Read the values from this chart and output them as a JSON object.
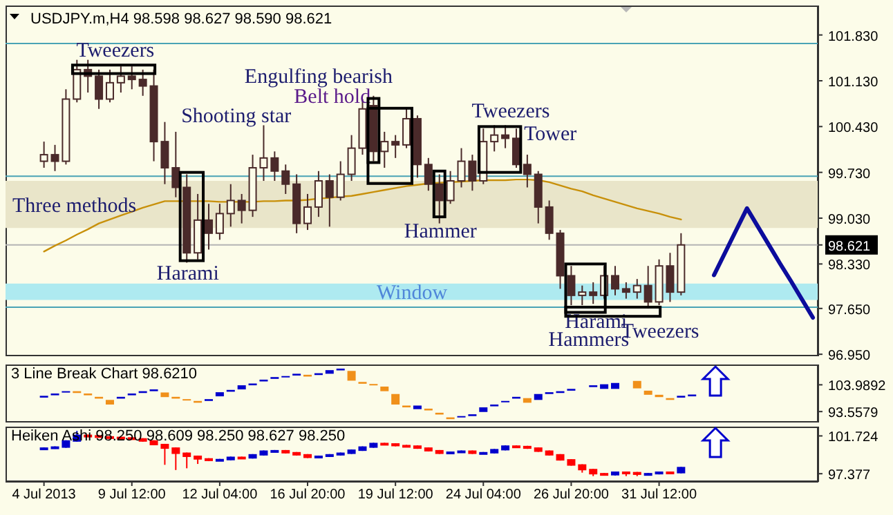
{
  "chart_data": [
    {
      "type": "candlestick",
      "title": "USDJPY.m,H4 98.598 98.627 98.590 98.621",
      "ylim": [
        96.92,
        102.28
      ],
      "tick_labels": "y",
      "categories": [
        null,
        null,
        null,
        null,
        null,
        null,
        null,
        null,
        null,
        null,
        null,
        null,
        null,
        null,
        null,
        null,
        null,
        null,
        null,
        null,
        null,
        null,
        null,
        null,
        null,
        null,
        null,
        null,
        null,
        null,
        null,
        null,
        null,
        null,
        null,
        null,
        null,
        null,
        null,
        null,
        null,
        null,
        null,
        null,
        null,
        null,
        null,
        null,
        null,
        null,
        null,
        null,
        null,
        null,
        null,
        null,
        null,
        null,
        null,
        null,
        null,
        null,
        null,
        null,
        null,
        null,
        null,
        null,
        null,
        null,
        null,
        null,
        null,
        null
      ],
      "yticks": [
        {
          "value": 101.83,
          "label": "101.830"
        },
        {
          "value": 101.13,
          "label": "101.130"
        },
        {
          "value": 100.43,
          "label": "100.430"
        },
        {
          "value": 99.73,
          "label": "99.730"
        },
        {
          "value": 99.03,
          "label": "99.030"
        },
        {
          "value": 98.621,
          "label": "98.621"
        },
        {
          "value": 98.33,
          "label": "98.330"
        },
        {
          "value": 97.65,
          "label": "97.650"
        },
        {
          "value": 96.95,
          "label": "96.950"
        }
      ],
      "series": [
        {
          "color": "#4a2a2a",
          "ohlc": [
            null,
            null,
            null,
            [
              99.9,
              100.2,
              99.8,
              100.0
            ],
            [
              100.0,
              100.15,
              99.75,
              99.9
            ],
            [
              99.9,
              101.0,
              99.85,
              100.85
            ],
            [
              100.85,
              101.45,
              100.8,
              101.3
            ],
            [
              101.3,
              101.45,
              100.95,
              101.2
            ],
            [
              101.2,
              101.3,
              100.7,
              100.85
            ],
            [
              100.85,
              101.3,
              100.8,
              101.1
            ],
            [
              101.1,
              101.35,
              100.95,
              101.2
            ],
            [
              101.2,
              101.35,
              101.0,
              101.15
            ],
            [
              101.15,
              101.3,
              100.9,
              101.05
            ],
            [
              101.05,
              101.3,
              99.9,
              100.2
            ],
            [
              100.2,
              100.5,
              99.55,
              99.8
            ],
            [
              99.8,
              100.35,
              99.35,
              99.5
            ],
            [
              99.5,
              99.7,
              98.35,
              98.5
            ],
            [
              98.5,
              99.4,
              98.4,
              99.0
            ],
            [
              99.0,
              99.25,
              98.55,
              98.8
            ],
            [
              98.8,
              99.25,
              98.7,
              99.1
            ],
            [
              99.1,
              99.55,
              98.9,
              99.3
            ],
            [
              99.3,
              99.4,
              98.95,
              99.15
            ],
            [
              99.15,
              100.0,
              99.05,
              99.8
            ],
            [
              99.8,
              100.45,
              99.6,
              99.95
            ],
            [
              99.95,
              100.05,
              99.6,
              99.75
            ],
            [
              99.75,
              99.85,
              99.4,
              99.55
            ],
            [
              99.55,
              99.7,
              98.8,
              98.95
            ],
            [
              98.95,
              99.4,
              98.85,
              99.2
            ],
            [
              99.2,
              99.75,
              99.05,
              99.6
            ],
            [
              99.6,
              99.7,
              98.9,
              99.35
            ],
            [
              99.35,
              99.9,
              99.3,
              99.7
            ],
            [
              99.7,
              100.3,
              99.6,
              100.1
            ],
            [
              100.1,
              100.85,
              100.0,
              100.7
            ],
            [
              100.75,
              100.9,
              99.9,
              100.05
            ],
            [
              100.05,
              100.35,
              99.8,
              100.2
            ],
            [
              100.2,
              100.3,
              99.95,
              100.15
            ],
            [
              100.15,
              100.7,
              100.1,
              100.55
            ],
            [
              100.55,
              100.6,
              99.65,
              99.85
            ],
            [
              99.85,
              99.95,
              99.45,
              99.55
            ],
            [
              99.55,
              99.7,
              98.95,
              99.3
            ],
            [
              99.3,
              99.75,
              99.25,
              99.6
            ],
            [
              99.6,
              100.1,
              99.5,
              99.9
            ],
            [
              99.9,
              100.0,
              99.45,
              99.6
            ],
            [
              99.6,
              100.4,
              99.55,
              100.2
            ],
            [
              100.2,
              100.45,
              100.05,
              100.3
            ],
            [
              100.3,
              100.45,
              100.1,
              100.25
            ],
            [
              100.25,
              100.4,
              99.8,
              99.85
            ],
            [
              99.85,
              100.0,
              99.5,
              99.7
            ],
            [
              99.7,
              99.75,
              98.95,
              99.2
            ],
            [
              99.2,
              99.3,
              98.7,
              98.8
            ],
            [
              98.8,
              98.85,
              97.95,
              98.15
            ],
            [
              98.15,
              98.3,
              97.7,
              97.85
            ],
            [
              97.85,
              98.0,
              97.7,
              97.9
            ],
            [
              97.9,
              98.05,
              97.72,
              97.85
            ],
            [
              97.85,
              98.3,
              97.8,
              98.15
            ],
            [
              98.15,
              98.3,
              97.85,
              97.95
            ],
            [
              97.95,
              98.05,
              97.8,
              97.9
            ],
            [
              97.9,
              98.1,
              97.8,
              98.0
            ],
            [
              98.0,
              98.3,
              97.65,
              97.75
            ],
            [
              97.75,
              98.4,
              97.7,
              98.3
            ],
            [
              98.3,
              98.5,
              97.75,
              97.9
            ],
            [
              97.9,
              98.8,
              97.85,
              98.621
            ],
            null,
            null,
            null,
            null,
            null,
            null,
            null,
            null,
            null,
            null,
            null,
            null
          ]
        },
        {
          "type": "line",
          "color": "#c8900a",
          "values": [
            null,
            null,
            null,
            98.52,
            98.61,
            98.69,
            98.78,
            98.86,
            98.95,
            99.01,
            99.07,
            99.13,
            99.19,
            99.24,
            99.29,
            99.29,
            99.29,
            99.29,
            99.29,
            99.28,
            99.28,
            99.28,
            99.28,
            99.29,
            99.29,
            99.3,
            99.3,
            99.31,
            99.33,
            99.34,
            99.36,
            99.37,
            99.4,
            99.43,
            99.46,
            99.49,
            99.52,
            99.54,
            99.56,
            99.57,
            99.58,
            99.59,
            99.6,
            99.61,
            99.61,
            99.61,
            99.62,
            99.62,
            99.61,
            99.58,
            99.53,
            99.48,
            99.44,
            99.38,
            99.33,
            99.28,
            99.23,
            99.18,
            99.14,
            99.1,
            99.05,
            99.01,
            null,
            null,
            null,
            null,
            null,
            null,
            null,
            null,
            null,
            null,
            null,
            null
          ]
        },
        {
          "type": "line",
          "color": "#0c0c9c",
          "values": [
            null,
            null,
            null,
            null,
            null,
            null,
            null,
            null,
            null,
            null,
            null,
            null,
            null,
            null,
            null,
            null,
            null,
            null,
            null,
            null,
            null,
            null,
            null,
            null,
            null,
            null,
            null,
            null,
            null,
            null,
            null,
            null,
            null,
            null,
            null,
            null,
            null,
            null,
            null,
            null,
            null,
            null,
            null,
            null,
            null,
            null,
            null,
            null,
            null,
            null,
            null,
            null,
            null,
            null,
            null,
            null,
            null,
            null,
            null,
            null,
            null,
            null,
            null,
            null,
            98.16,
            98.5,
            98.84,
            99.18,
            98.9,
            98.62,
            98.34,
            98.07,
            97.79,
            97.51
          ]
        }
      ],
      "ref_lines": [
        {
          "axis": "y",
          "value": 101.7,
          "color": "#4aa3b5"
        },
        {
          "axis": "y",
          "value": 99.67,
          "color": "#4aa3b5"
        },
        {
          "axis": "y",
          "value": 97.67,
          "color": "#4aa3b5"
        },
        {
          "axis": "y",
          "value": 98.621,
          "color": "#b4b4b4"
        }
      ],
      "bands": [
        {
          "axis": "y",
          "from": 98.88,
          "to": 99.6,
          "label": "Three methods",
          "color": "#e9e5c9"
        },
        {
          "axis": "y",
          "from": 97.78,
          "to": 98.03,
          "label": "Window",
          "color": "#aeeaf0"
        }
      ],
      "annotations": [
        "Tweezers",
        "Shooting star",
        "Engulfing bearish",
        "Belt hold",
        "Tweezers",
        "Tower",
        "Harami",
        "Hammer",
        "Harami",
        "Hammers",
        "Tweezers"
      ]
    },
    {
      "type": "bar",
      "title": "3 Line Break Chart 98.6210",
      "ylim": [
        89.3,
        111.9
      ],
      "yticks": [
        103.9892,
        93.5579
      ],
      "tick_labels": "y",
      "categories": [
        null,
        null,
        null,
        null,
        null,
        null,
        null,
        null,
        null,
        null,
        null,
        null,
        null,
        null,
        null,
        null,
        null,
        null,
        null,
        null,
        null,
        null,
        null,
        null,
        null,
        null,
        null,
        null,
        null,
        null,
        null,
        null,
        null,
        null,
        null,
        null,
        null,
        null,
        null,
        null,
        null,
        null,
        null,
        null,
        null,
        null,
        null,
        null,
        null,
        null,
        null,
        null,
        null,
        null,
        null,
        null,
        null,
        null,
        null,
        null,
        null,
        null,
        null,
        null,
        null,
        null,
        null,
        null,
        null,
        null,
        null,
        null,
        null,
        null
      ],
      "base": [
        null,
        null,
        null,
        99.0,
        99.9,
        101.0,
        100.8,
        99.9,
        98.6,
        96.3,
        98.6,
        99.9,
        100.8,
        101.5,
        99.2,
        98.6,
        97.9,
        97.0,
        97.7,
        99.5,
        101.3,
        102.2,
        103.8,
        105.3,
        106.3,
        106.9,
        107.6,
        107.2,
        107.8,
        108.3,
        109.6,
        105.6,
        104.4,
        103.8,
        101.5,
        96.3,
        95.2,
        94.5,
        94.0,
        92.4,
        90.6,
        91.3,
        91.8,
        93.4,
        95.6,
        97.2,
        98.6,
        97.0,
        98.1,
        100.4,
        100.8,
        101.7,
        null,
        103.1,
        102.4,
        102.4,
        null,
        102.6,
        100.1,
        99.2,
        98.1,
        99.0,
        99.5,
        null,
        null,
        null,
        null,
        null,
        null,
        null,
        null,
        null,
        null,
        null
      ],
      "values": [
        null,
        null,
        null,
        0.7,
        0.7,
        0.5,
        0.7,
        0.7,
        0.7,
        1.8,
        0.7,
        0.7,
        0.7,
        0.7,
        1.8,
        0.7,
        0.5,
        0.7,
        0.7,
        1.6,
        0.7,
        1.6,
        0.7,
        0.7,
        0.7,
        0.5,
        0.7,
        0.7,
        0.7,
        1.4,
        0.7,
        3.8,
        0.7,
        0.5,
        1.8,
        4.1,
        0.7,
        1.4,
        0.7,
        0.7,
        0.7,
        0.5,
        0.7,
        1.8,
        0.7,
        0.5,
        0.7,
        1.8,
        2.3,
        0.7,
        0.7,
        0.7,
        null,
        0.7,
        1.8,
        2.3,
        null,
        2.9,
        1.6,
        0.9,
        0.7,
        0.7,
        0.7,
        null,
        null,
        null,
        null,
        null,
        null,
        null,
        null,
        null,
        null,
        null
      ],
      "colors": [
        null,
        null,
        null,
        "#0000cc",
        "#0000cc",
        "#0000cc",
        "#f0901a",
        "#f0901a",
        "#f0901a",
        "#f0901a",
        "#0000cc",
        "#0000cc",
        "#0000cc",
        "#0000cc",
        "#f0901a",
        "#f0901a",
        "#f0901a",
        "#f0901a",
        "#0000cc",
        "#0000cc",
        "#0000cc",
        "#0000cc",
        "#0000cc",
        "#0000cc",
        "#0000cc",
        "#0000cc",
        "#0000cc",
        "#f0901a",
        "#0000cc",
        "#0000cc",
        "#0000cc",
        "#f0901a",
        "#f0901a",
        "#f0901a",
        "#f0901a",
        "#f0901a",
        "#f0901a",
        "#0000cc",
        "#f0901a",
        "#f0901a",
        "#f0901a",
        "#0000cc",
        "#0000cc",
        "#0000cc",
        "#0000cc",
        "#0000cc",
        "#0000cc",
        "#f0901a",
        "#0000cc",
        "#0000cc",
        "#0000cc",
        "#0000cc",
        null,
        "#0000cc",
        "#0000cc",
        "#0000cc",
        null,
        "#f0901a",
        "#f0901a",
        "#f0901a",
        "#f0901a",
        "#0000cc",
        "#0000cc",
        null,
        null,
        null,
        null,
        null,
        null,
        null,
        null,
        null,
        null,
        null
      ]
    },
    {
      "type": "candlestick",
      "title": "Heiken Ashi 98.250 98.609 98.250 98.627 98.250",
      "ylim": [
        96.44,
        102.79
      ],
      "yticks": [
        101.724,
        97.377
      ],
      "categories": [
        null,
        null,
        null,
        "4 Jul 2013",
        null,
        null,
        null,
        null,
        null,
        null,
        null,
        "9 Jul 12:00",
        null,
        null,
        null,
        null,
        null,
        null,
        null,
        "12 Jul 04:00",
        null,
        null,
        null,
        null,
        null,
        null,
        null,
        "16 Jul 20:00",
        null,
        null,
        null,
        null,
        null,
        null,
        null,
        "19 Jul 12:00",
        null,
        null,
        null,
        null,
        null,
        null,
        null,
        "24 Jul 04:00",
        null,
        null,
        null,
        null,
        null,
        null,
        null,
        "26 Jul 20:00",
        null,
        null,
        null,
        null,
        null,
        null,
        null,
        "31 Jul 12:00",
        null,
        null,
        null,
        null,
        null,
        null,
        null,
        null,
        null,
        null,
        null,
        null,
        null,
        null
      ],
      "series": [
        {
          "color": "#0000cc",
          "ohlc": [
            null,
            null,
            null,
            [
              100.2,
              100.4,
              100.12,
              100.32
            ],
            [
              100.32,
              100.52,
              100.24,
              100.44
            ],
            [
              100.44,
              101.22,
              100.36,
              101.14
            ],
            [
              101.14,
              102.3,
              101.06,
              101.79
            ],
            null,
            null,
            null,
            null,
            null,
            null,
            null,
            null,
            null,
            null,
            null,
            null,
            [
              98.91,
              99.08,
              98.83,
              99.0
            ],
            [
              99.0,
              99.34,
              98.92,
              99.26
            ],
            null,
            [
              99.2,
              99.63,
              99.12,
              99.55
            ],
            [
              99.55,
              100.05,
              99.47,
              99.97
            ],
            [
              99.97,
              100.1,
              99.89,
              100.02
            ],
            null,
            null,
            null,
            [
              99.26,
              99.46,
              99.18,
              99.38
            ],
            [
              99.38,
              99.63,
              99.3,
              99.55
            ],
            [
              99.55,
              99.81,
              99.47,
              99.73
            ],
            [
              99.73,
              100.16,
              99.65,
              100.08
            ],
            [
              100.08,
              100.52,
              100.0,
              100.44
            ],
            [
              100.44,
              100.93,
              100.36,
              100.85
            ],
            null,
            null,
            null,
            null,
            null,
            null,
            [
              99.73,
              99.93,
              99.65,
              99.85
            ],
            [
              99.85,
              100.05,
              99.77,
              99.97
            ],
            null,
            [
              99.73,
              99.87,
              99.65,
              99.79
            ],
            [
              99.79,
              100.22,
              99.71,
              100.14
            ],
            [
              100.14,
              100.63,
              100.06,
              100.55
            ],
            null,
            null,
            null,
            null,
            null,
            null,
            null,
            null,
            null,
            [
              97.26,
              97.63,
              97.18,
              97.55
            ],
            null,
            null,
            [
              97.32,
              97.46,
              97.24,
              97.38
            ],
            [
              97.38,
              97.63,
              97.3,
              97.55
            ],
            null,
            [
              97.5,
              98.16,
              97.42,
              98.08
            ],
            null,
            null,
            null,
            null,
            null,
            null,
            null,
            null,
            null,
            null,
            null,
            null
          ]
        },
        {
          "color": "#ff0000",
          "ohlc": [
            null,
            null,
            null,
            null,
            null,
            null,
            null,
            [
              101.79,
              101.87,
              101.65,
              101.73
            ],
            [
              101.73,
              101.81,
              101.53,
              101.61
            ],
            [
              101.61,
              101.69,
              101.47,
              101.55
            ],
            [
              101.55,
              101.63,
              101.41,
              101.49
            ],
            [
              101.49,
              101.57,
              101.3,
              101.38
            ],
            [
              101.38,
              101.46,
              101.06,
              101.14
            ],
            [
              101.14,
              101.22,
              100.65,
              100.73
            ],
            [
              100.73,
              100.81,
              98.4,
              100.32
            ],
            [
              100.32,
              100.4,
              97.8,
              99.73
            ],
            [
              99.73,
              99.81,
              98.0,
              99.38
            ],
            [
              99.38,
              99.46,
              98.5,
              99.08
            ],
            [
              99.08,
              99.16,
              98.83,
              98.91
            ],
            null,
            null,
            [
              99.26,
              99.34,
              99.12,
              99.2
            ],
            null,
            null,
            null,
            [
              100.02,
              100.1,
              99.71,
              99.79
            ],
            [
              99.79,
              99.87,
              99.47,
              99.55
            ],
            [
              99.55,
              99.63,
              99.18,
              99.26
            ],
            null,
            null,
            null,
            null,
            null,
            null,
            [
              100.85,
              100.93,
              100.72,
              100.8
            ],
            [
              100.8,
              100.88,
              100.53,
              100.61
            ],
            [
              100.61,
              100.69,
              100.47,
              100.55
            ],
            [
              100.55,
              100.63,
              100.24,
              100.32
            ],
            [
              100.32,
              100.4,
              99.94,
              100.02
            ],
            [
              100.02,
              100.1,
              99.65,
              99.73
            ],
            null,
            null,
            [
              99.97,
              100.05,
              99.65,
              99.73
            ],
            null,
            null,
            null,
            [
              100.55,
              100.63,
              100.42,
              100.5
            ],
            [
              100.5,
              100.58,
              100.24,
              100.32
            ],
            [
              100.32,
              100.4,
              99.89,
              99.97
            ],
            [
              99.97,
              100.05,
              99.47,
              99.55
            ],
            [
              99.55,
              99.63,
              98.89,
              98.97
            ],
            [
              98.97,
              99.05,
              98.3,
              98.38
            ],
            [
              98.38,
              98.46,
              97.5,
              97.85
            ],
            [
              97.85,
              97.93,
              97.1,
              97.38
            ],
            [
              97.38,
              97.46,
              97.18,
              97.26
            ],
            null,
            [
              97.55,
              97.63,
              97.1,
              97.5
            ],
            [
              97.5,
              97.58,
              97.1,
              97.32
            ],
            null,
            null,
            [
              97.55,
              97.63,
              97.42,
              97.5
            ],
            null,
            null,
            null,
            null,
            null,
            null,
            null,
            null,
            null,
            null,
            null,
            null,
            null
          ]
        }
      ]
    }
  ]
}
